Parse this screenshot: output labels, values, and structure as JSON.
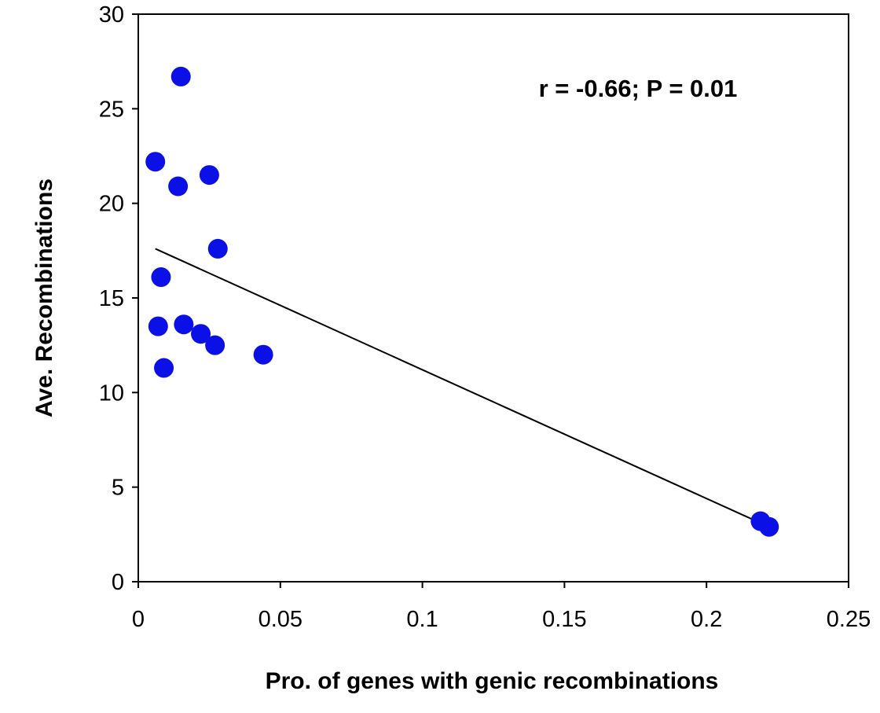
{
  "chart_data": {
    "type": "scatter",
    "xlabel": "Pro. of genes with genic recombinations",
    "ylabel": "Ave. Recombinations",
    "xlim": [
      0,
      0.25
    ],
    "ylim": [
      0,
      30
    ],
    "xticks": [
      0,
      0.05,
      0.1,
      0.15,
      0.2,
      0.25
    ],
    "yticks": [
      0,
      5,
      10,
      15,
      20,
      25,
      30
    ],
    "xtick_labels": [
      "0",
      "0.05",
      "0.1",
      "0.15",
      "0.2",
      "0.25"
    ],
    "ytick_labels": [
      "0",
      "5",
      "10",
      "15",
      "20",
      "25",
      "30"
    ],
    "annotation": "r = -0.66; P = 0.01",
    "grid": false,
    "legend": false,
    "series": [
      {
        "points": [
          {
            "x": 0.015,
            "y": 26.7
          },
          {
            "x": 0.006,
            "y": 22.2
          },
          {
            "x": 0.014,
            "y": 20.9
          },
          {
            "x": 0.025,
            "y": 21.5
          },
          {
            "x": 0.028,
            "y": 17.6
          },
          {
            "x": 0.008,
            "y": 16.1
          },
          {
            "x": 0.007,
            "y": 13.5
          },
          {
            "x": 0.016,
            "y": 13.6
          },
          {
            "x": 0.022,
            "y": 13.1
          },
          {
            "x": 0.027,
            "y": 12.5
          },
          {
            "x": 0.044,
            "y": 12.0
          },
          {
            "x": 0.009,
            "y": 11.3
          },
          {
            "x": 0.219,
            "y": 3.2
          },
          {
            "x": 0.222,
            "y": 2.9
          }
        ],
        "color": "#0a10e6"
      }
    ],
    "trendline": {
      "x": [
        0.006,
        0.222
      ],
      "y": [
        17.6,
        2.9
      ],
      "color": "#000000"
    }
  }
}
